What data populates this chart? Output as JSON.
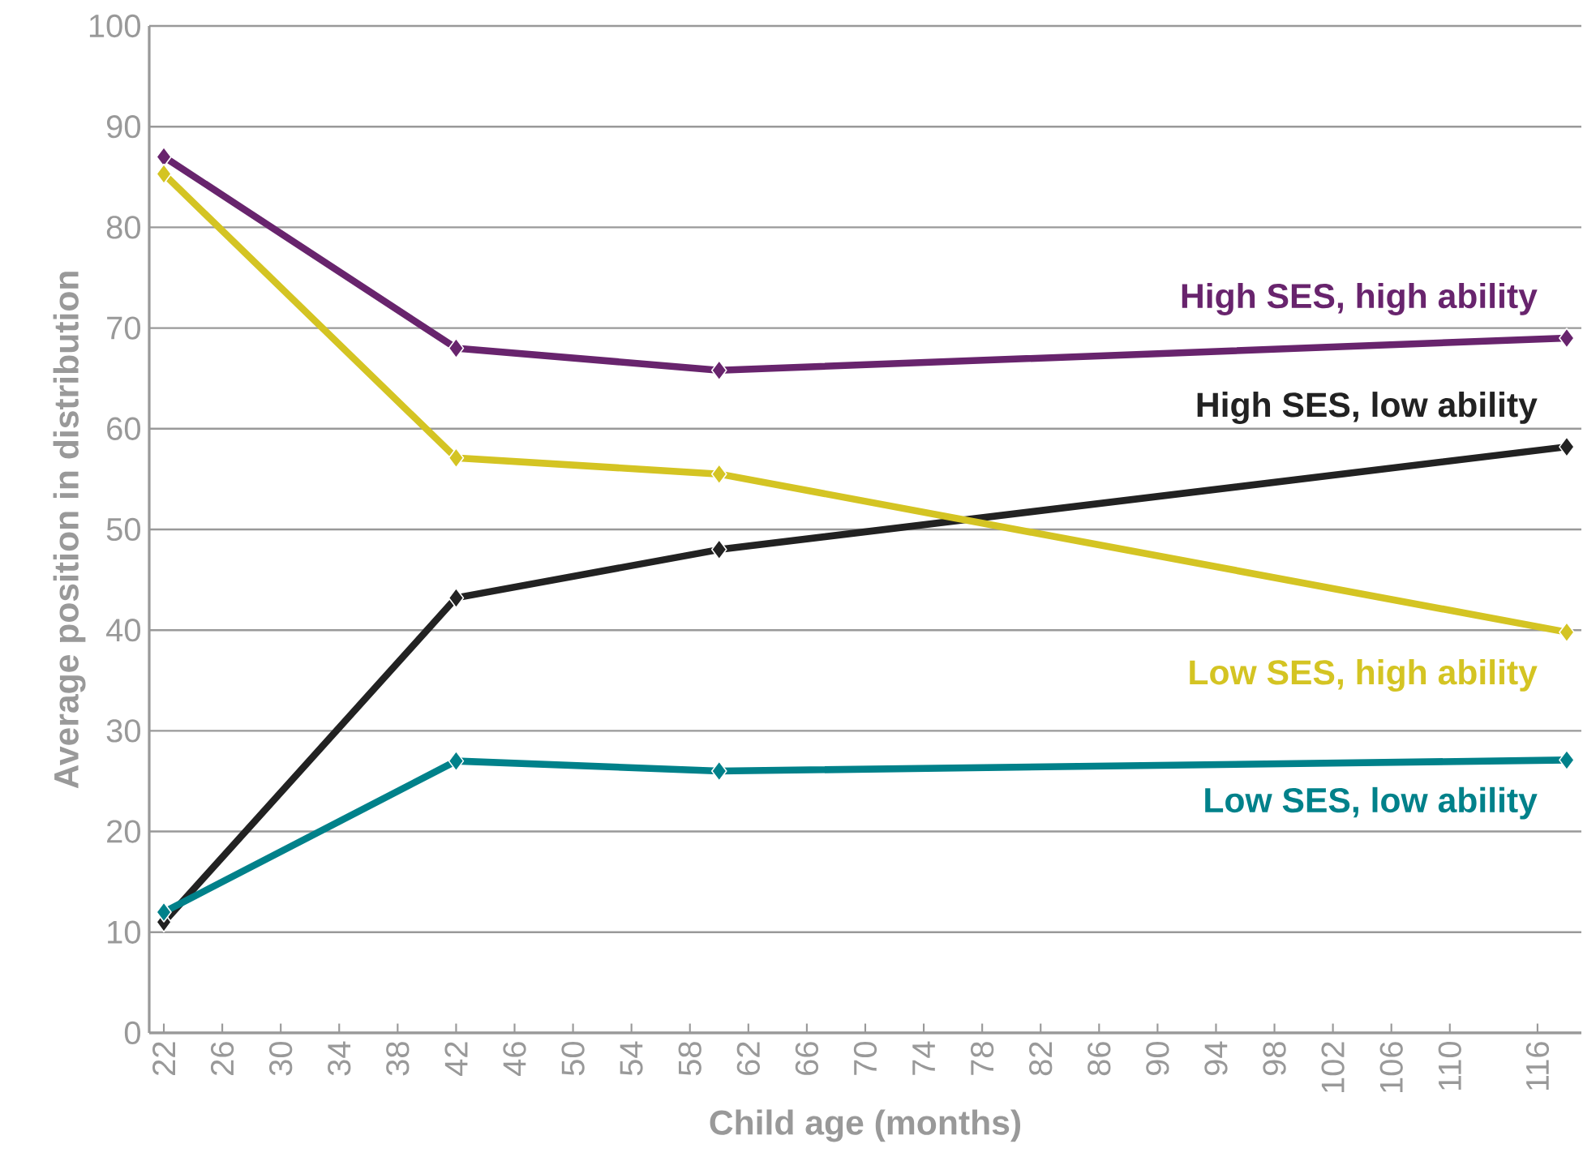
{
  "chart_data": {
    "type": "line",
    "xlabel": "Child age (months)",
    "ylabel": "Average position in distribution",
    "xlim": [
      21,
      119
    ],
    "ylim": [
      0,
      100
    ],
    "xticks": [
      22,
      26,
      30,
      34,
      38,
      42,
      46,
      50,
      54,
      58,
      62,
      66,
      70,
      74,
      78,
      82,
      86,
      90,
      94,
      98,
      102,
      106,
      110,
      116
    ],
    "yticks": [
      0,
      10,
      20,
      30,
      40,
      50,
      60,
      70,
      80,
      90,
      100
    ],
    "grid": "y",
    "legend": false,
    "marker": "diamond",
    "line_style": "solid",
    "series": [
      {
        "name": "High SES, high ability",
        "color": "#68246d",
        "x": [
          22,
          42,
          60,
          118
        ],
        "values": [
          87,
          68,
          65.8,
          69
        ]
      },
      {
        "name": "High SES, low ability",
        "color": "#222222",
        "x": [
          22,
          42,
          60,
          118
        ],
        "values": [
          11,
          43.2,
          48,
          58.2
        ]
      },
      {
        "name": "Low SES, high ability",
        "color": "#d4c423",
        "x": [
          22,
          42,
          60,
          118
        ],
        "values": [
          85.3,
          57.1,
          55.5,
          39.8
        ]
      },
      {
        "name": "Low SES, low ability",
        "color": "#00818a",
        "x": [
          22,
          42,
          60,
          118
        ],
        "values": [
          12,
          27,
          26,
          27.1
        ]
      }
    ]
  }
}
